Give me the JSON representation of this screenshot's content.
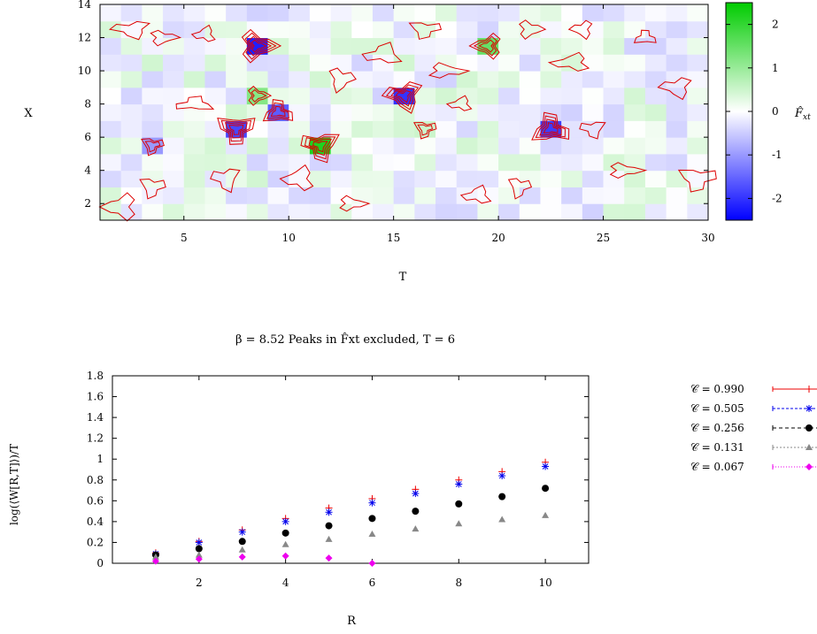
{
  "chart_data": [
    {
      "type": "heatmap",
      "title": "",
      "xlabel": "T",
      "ylabel": "X",
      "xlim": [
        1,
        30
      ],
      "ylim": [
        1,
        14
      ],
      "xticks": [
        "5",
        "10",
        "15",
        "20",
        "25",
        "30"
      ],
      "yticks": [
        "2",
        "4",
        "6",
        "8",
        "10",
        "12",
        "14"
      ],
      "colorbar": {
        "label": "F̂xt",
        "range": [
          -2.5,
          2.5
        ],
        "ticks": [
          "2",
          "1",
          "0",
          "-1",
          "-2"
        ],
        "low_color": "#0000ff",
        "mid_color": "#ffffff",
        "high_color": "#00cc00"
      },
      "contour_color": "#dd0000",
      "peaks": [
        {
          "t": 8.5,
          "x": 11.5,
          "value": -2.2
        },
        {
          "t": 7.5,
          "x": 6.5,
          "value": -1.8
        },
        {
          "t": 9.5,
          "x": 7.5,
          "value": -1.6
        },
        {
          "t": 15.5,
          "x": 8.5,
          "value": -2.0
        },
        {
          "t": 22.5,
          "x": 6.5,
          "value": -1.9
        },
        {
          "t": 3.5,
          "x": 5.5,
          "value": -1.0
        },
        {
          "t": 11.5,
          "x": 5.5,
          "value": 2.2
        },
        {
          "t": 19.5,
          "x": 11.5,
          "value": 1.5
        },
        {
          "t": 8.5,
          "x": 8.5,
          "value": 1.2
        },
        {
          "t": 16.5,
          "x": 6.5,
          "value": 0.5
        }
      ]
    },
    {
      "type": "scatter",
      "title": "β = 8.52 Peaks in F̂xt excluded, T = 6",
      "xlabel": "R",
      "ylabel": "log(⟨W[R,T]⟩)/T",
      "xlim": [
        0,
        11
      ],
      "ylim": [
        0,
        1.8
      ],
      "xticks": [
        "2",
        "4",
        "6",
        "8",
        "10"
      ],
      "yticks": [
        "0",
        "0.2",
        "0.4",
        "0.6",
        "0.8",
        "1",
        "1.2",
        "1.4",
        "1.6",
        "1.8"
      ],
      "legend_position": "right",
      "series": [
        {
          "name": "𝒞 = 0.990",
          "color": "#ee0000",
          "marker": "plus",
          "x": [
            1,
            2,
            3,
            4,
            5,
            6,
            7,
            8,
            9,
            10
          ],
          "y": [
            0.1,
            0.21,
            0.32,
            0.43,
            0.53,
            0.62,
            0.71,
            0.8,
            0.88,
            0.97
          ]
        },
        {
          "name": "𝒞 = 0.505",
          "color": "#0000ee",
          "marker": "star",
          "x": [
            1,
            2,
            3,
            4,
            5,
            6,
            7,
            8,
            9,
            10
          ],
          "y": [
            0.09,
            0.2,
            0.3,
            0.4,
            0.49,
            0.58,
            0.67,
            0.76,
            0.84,
            0.93
          ]
        },
        {
          "name": "𝒞 = 0.256",
          "color": "#000000",
          "marker": "circle",
          "x": [
            1,
            2,
            3,
            4,
            5,
            6,
            7,
            8,
            9,
            10
          ],
          "y": [
            0.08,
            0.14,
            0.21,
            0.29,
            0.36,
            0.43,
            0.5,
            0.57,
            0.64,
            0.72
          ]
        },
        {
          "name": "𝒞 = 0.131",
          "color": "#888888",
          "marker": "triangle",
          "x": [
            1,
            2,
            3,
            4,
            5,
            6,
            7,
            8,
            9,
            10
          ],
          "y": [
            0.06,
            0.08,
            0.13,
            0.18,
            0.23,
            0.28,
            0.33,
            0.38,
            0.42,
            0.46
          ]
        },
        {
          "name": "𝒞 = 0.067",
          "color": "#ee00ee",
          "marker": "diamond",
          "x": [
            1,
            2,
            3,
            4,
            5,
            6
          ],
          "y": [
            0.02,
            0.04,
            0.06,
            0.07,
            0.05,
            0.0
          ]
        }
      ]
    }
  ]
}
